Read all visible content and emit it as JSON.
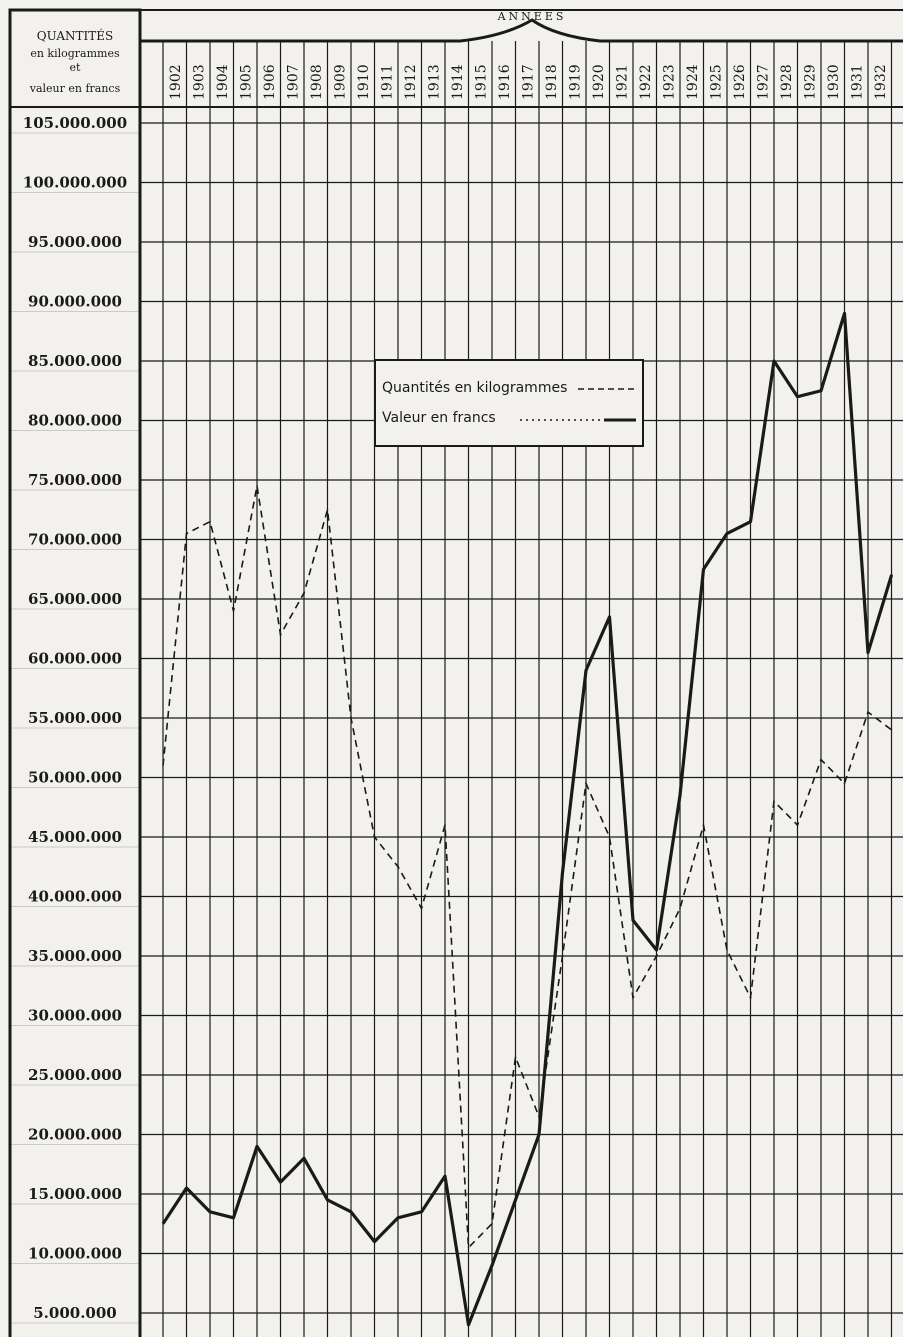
{
  "header": {
    "quantites_title": "QUANTITÉS",
    "quantites_line2": "en kilogrammes",
    "quantites_line3": "et",
    "quantites_line4": "valeur en francs",
    "annees_label": "ANNEES"
  },
  "legend": {
    "quantites_label": "Quantités en kilogrammes",
    "valeur_label": "Valeur en francs"
  },
  "chart_data": {
    "type": "line",
    "x": [
      "1902",
      "1903",
      "1904",
      "1905",
      "1906",
      "1907",
      "1908",
      "1909",
      "1910",
      "1911",
      "1912",
      "1913",
      "1914",
      "1915",
      "1916",
      "1917",
      "1918",
      "1919",
      "1920",
      "1921",
      "1922",
      "1923",
      "1924",
      "1925",
      "1926",
      "1927",
      "1928",
      "1929",
      "1930",
      "1931",
      "1932"
    ],
    "y_ticks": [
      "105.000.000",
      "100.000.000",
      "95.000.000",
      "90.000.000",
      "85.000.000",
      "80.000.000",
      "75.000.000",
      "70.000.000",
      "65.000.000",
      "60.000.000",
      "55.000.000",
      "50.000.000",
      "45.000.000",
      "40.000.000",
      "35.000.000",
      "30.000.000",
      "25.000.000",
      "20.000.000",
      "15.000.000",
      "10.000.000",
      "5.000.000"
    ],
    "ylim": [
      0,
      107500000
    ],
    "grid": true,
    "legend_position": "center",
    "series": [
      {
        "name": "Quantités en kilogrammes",
        "style": "dashed",
        "values": [
          70500000,
          71500000,
          64000000,
          74500000,
          62000000,
          65500000,
          72500000,
          55000000,
          45000000,
          42500000,
          39000000,
          46000000,
          10500000,
          12500000,
          26500000,
          21500000,
          35000000,
          49500000,
          45000000,
          31500000,
          35000000,
          39000000,
          46000000,
          35500000,
          31500000,
          48000000,
          46000000,
          51500000,
          49500000,
          55500000,
          54000000
        ]
      },
      {
        "name": "Valeur en francs",
        "style": "solid",
        "values": [
          15500000,
          13500000,
          13000000,
          19000000,
          16000000,
          18000000,
          14500000,
          13500000,
          11000000,
          13000000,
          13500000,
          16500000,
          4000000,
          9000000,
          14500000,
          20000000,
          42000000,
          59000000,
          63500000,
          38000000,
          35500000,
          48500000,
          67500000,
          70500000,
          71500000,
          85000000,
          82000000,
          82500000,
          89000000,
          60500000,
          67000000
        ]
      }
    ],
    "start_value_quantites": 51000000,
    "start_value_valeur": 12500000
  },
  "colors": {
    "paper": "#f2f1ed",
    "ink": "#1a1a1a"
  }
}
